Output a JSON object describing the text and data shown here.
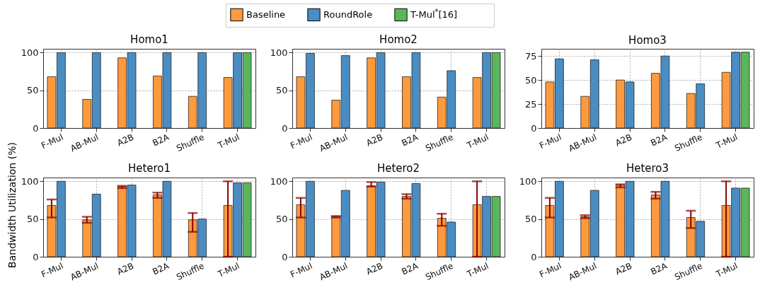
{
  "chart_data": [
    {
      "type": "bar",
      "title": "Homo1",
      "categories": [
        "F-Mul",
        "AB-Mul",
        "A2B",
        "B2A",
        "Shuffle",
        "T-Mul"
      ],
      "ylim": [
        0,
        105
      ],
      "yticks": [
        0,
        50,
        100
      ],
      "grid": true,
      "legend": "top",
      "series": [
        {
          "name": "Baseline",
          "color": "#fe9a3e",
          "values": [
            68,
            38,
            93,
            69,
            42,
            67
          ]
        },
        {
          "name": "RoundRole",
          "color": "#4a8dc3",
          "values": [
            100,
            100,
            100,
            100,
            100,
            100
          ]
        },
        {
          "name": "T-Mul$^{*}$[16]",
          "color": "#5ab65a",
          "values": [
            null,
            null,
            null,
            null,
            null,
            100
          ]
        }
      ]
    },
    {
      "type": "bar",
      "title": "Homo2",
      "categories": [
        "F-Mul",
        "AB-Mul",
        "A2B",
        "B2A",
        "Shuffle",
        "T-Mul"
      ],
      "ylim": [
        0,
        105
      ],
      "yticks": [
        0,
        50,
        100
      ],
      "grid": true,
      "series": [
        {
          "name": "Baseline",
          "color": "#fe9a3e",
          "values": [
            68,
            37,
            93,
            68,
            41,
            67
          ]
        },
        {
          "name": "RoundRole",
          "color": "#4a8dc3",
          "values": [
            99,
            96,
            100,
            100,
            76,
            100
          ]
        },
        {
          "name": "T-Mul$^{*}$[16]",
          "color": "#5ab65a",
          "values": [
            null,
            null,
            null,
            null,
            null,
            100
          ]
        }
      ]
    },
    {
      "type": "bar",
      "title": "Homo3",
      "categories": [
        "F-Mul",
        "AB-Mul",
        "A2B",
        "B2A",
        "Shuffle",
        "T-Mul"
      ],
      "ylim": [
        0,
        82.5
      ],
      "yticks": [
        0,
        25,
        50,
        75
      ],
      "grid": true,
      "series": [
        {
          "name": "Baseline",
          "color": "#fe9a3e",
          "values": [
            48,
            33,
            50,
            57,
            36,
            58
          ]
        },
        {
          "name": "RoundRole",
          "color": "#4a8dc3",
          "values": [
            72,
            71,
            48,
            75,
            46,
            79
          ]
        },
        {
          "name": "T-Mul$^{*}$[16]",
          "color": "#5ab65a",
          "values": [
            null,
            null,
            null,
            null,
            null,
            79
          ]
        }
      ]
    },
    {
      "type": "bar",
      "title": "Hetero1",
      "ylabel": "Bandwidth Utilization (%)",
      "categories": [
        "F-Mul",
        "AB-Mul",
        "A2B",
        "B2A",
        "Shuffle",
        "T-Mul"
      ],
      "ylim": [
        0,
        105
      ],
      "yticks": [
        0,
        50,
        100
      ],
      "grid": true,
      "series": [
        {
          "name": "Baseline",
          "color": "#fe9a3e",
          "values": [
            68,
            49,
            93,
            82,
            49,
            68
          ],
          "errors": [
            [
              52,
              76
            ],
            [
              45,
              53
            ],
            [
              91,
              94
            ],
            [
              78,
              85
            ],
            [
              33,
              58
            ],
            [
              0,
              100
            ]
          ]
        },
        {
          "name": "RoundRole",
          "color": "#4a8dc3",
          "values": [
            100,
            83,
            95,
            100,
            50,
            98
          ]
        },
        {
          "name": "T-Mul$^{*}$[16]",
          "color": "#5ab65a",
          "values": [
            null,
            null,
            null,
            null,
            null,
            98
          ]
        }
      ]
    },
    {
      "type": "bar",
      "title": "Hetero2",
      "categories": [
        "F-Mul",
        "AB-Mul",
        "A2B",
        "B2A",
        "Shuffle",
        "T-Mul"
      ],
      "ylim": [
        0,
        105
      ],
      "yticks": [
        0,
        50,
        100
      ],
      "grid": true,
      "series": [
        {
          "name": "Baseline",
          "color": "#fe9a3e",
          "values": [
            69,
            53,
            94,
            80,
            51,
            69
          ],
          "errors": [
            [
              52,
              78
            ],
            [
              52,
              54
            ],
            [
              93,
              99
            ],
            [
              77,
              83
            ],
            [
              41,
              57
            ],
            [
              0,
              100
            ]
          ]
        },
        {
          "name": "RoundRole",
          "color": "#4a8dc3",
          "values": [
            100,
            88,
            99,
            97,
            46,
            80
          ]
        },
        {
          "name": "T-Mul$^{*}$[16]",
          "color": "#5ab65a",
          "values": [
            null,
            null,
            null,
            null,
            null,
            80
          ]
        }
      ]
    },
    {
      "type": "bar",
      "title": "Hetero3",
      "categories": [
        "F-Mul",
        "AB-Mul",
        "A2B",
        "B2A",
        "Shuffle",
        "T-Mul"
      ],
      "ylim": [
        0,
        105
      ],
      "yticks": [
        0,
        50,
        100
      ],
      "grid": true,
      "series": [
        {
          "name": "Baseline",
          "color": "#fe9a3e",
          "values": [
            68,
            53,
            95,
            82,
            52,
            68
          ],
          "errors": [
            [
              52,
              78
            ],
            [
              51,
              55
            ],
            [
              92,
              96
            ],
            [
              77,
              86
            ],
            [
              38,
              61
            ],
            [
              0,
              100
            ]
          ]
        },
        {
          "name": "RoundRole",
          "color": "#4a8dc3",
          "values": [
            100,
            88,
            100,
            100,
            47,
            91
          ]
        },
        {
          "name": "T-Mul$^{*}$[16]",
          "color": "#5ab65a",
          "values": [
            null,
            null,
            null,
            null,
            null,
            91
          ]
        }
      ]
    }
  ]
}
